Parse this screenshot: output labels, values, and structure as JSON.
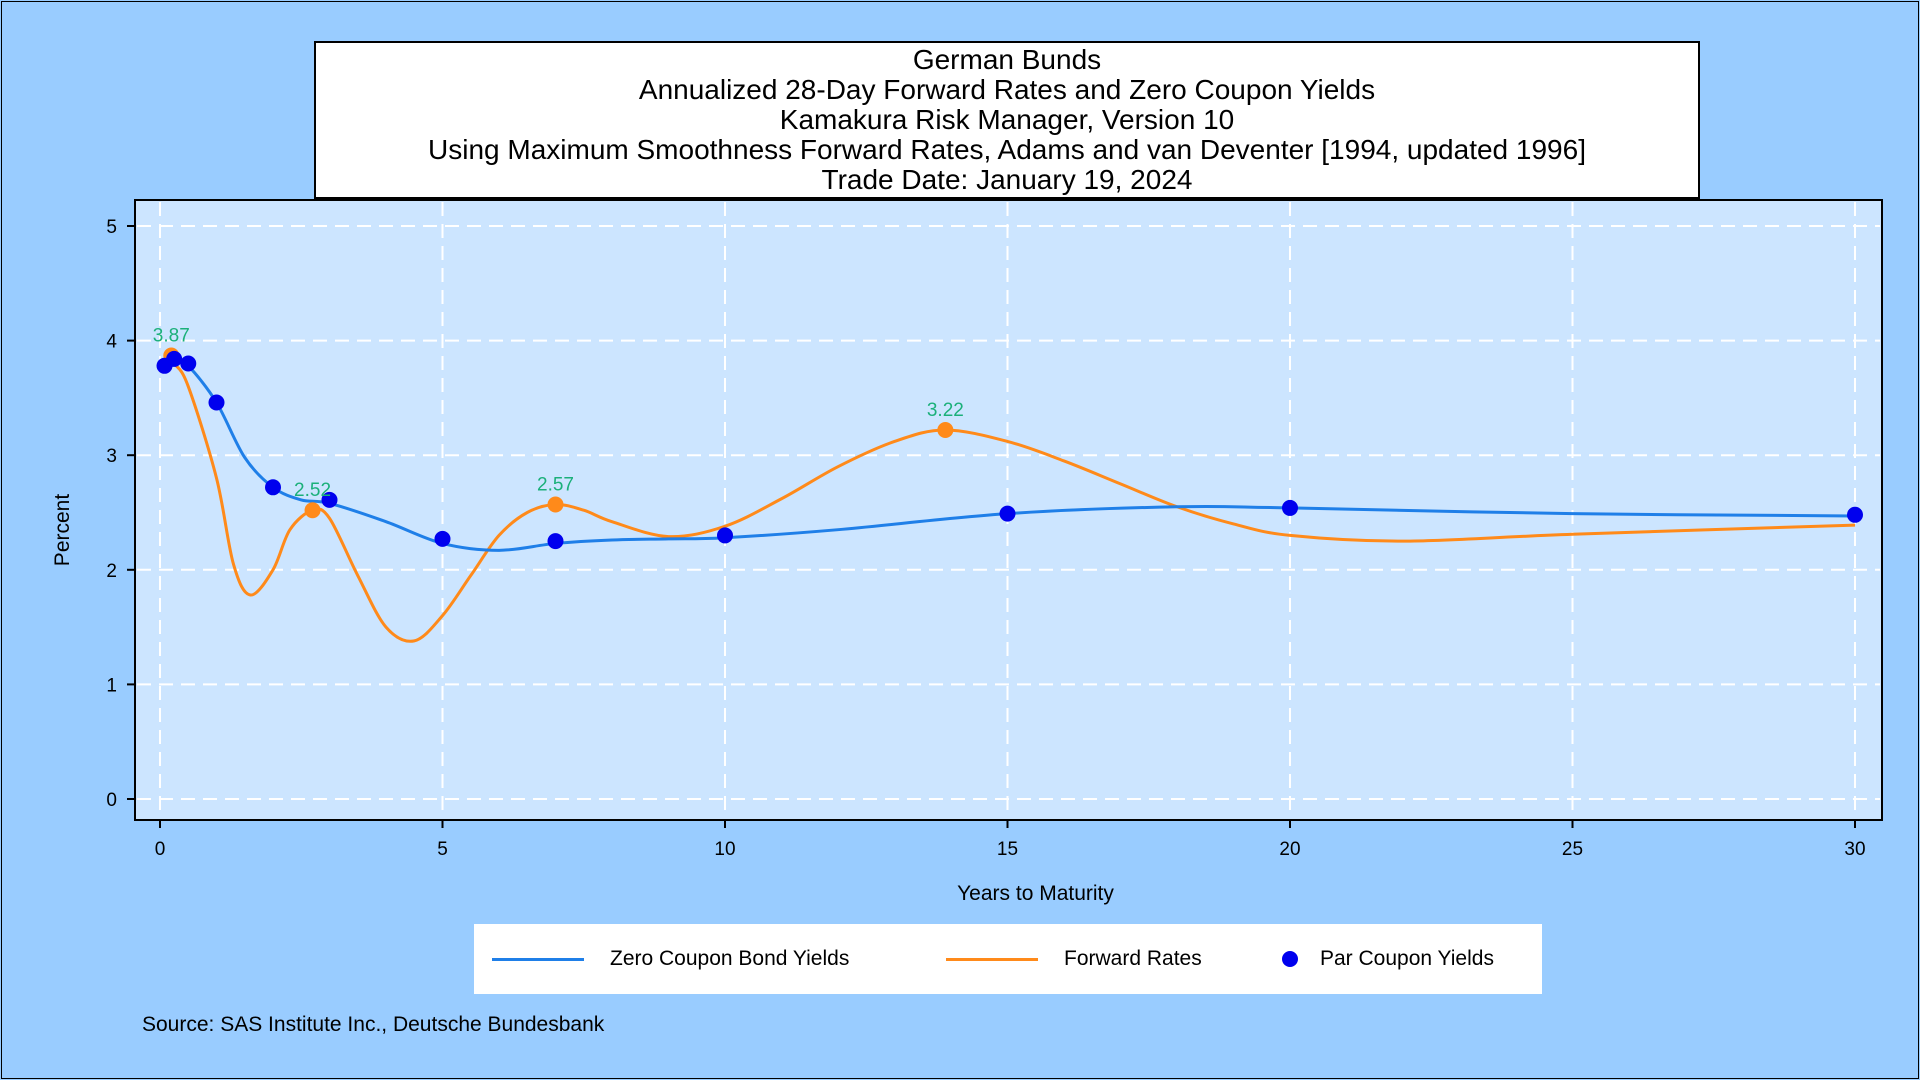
{
  "titles": [
    "German Bunds",
    "Annualized 28-Day Forward Rates and Zero Coupon Yields",
    "Kamakura Risk Manager, Version 10",
    "Using Maximum Smoothness Forward Rates, Adams and van Deventer [1994, updated 1996]",
    "Trade Date: January 19, 2024"
  ],
  "source": "Source: SAS Institute Inc., Deutsche Bundesbank",
  "legend": {
    "zero": "Zero Coupon Bond Yields",
    "forward": "Forward Rates",
    "par": "Par Coupon Yields"
  },
  "colors": {
    "zero": "#1f7fe8",
    "forward": "#ff8a1a",
    "par": "#0000ee",
    "label": "#1bb07a",
    "plot_bg": "#cce5ff",
    "page_bg": "#99ccff"
  },
  "chart_data": {
    "type": "line",
    "xlabel": "Years to Maturity",
    "ylabel": "Percent",
    "xlim": [
      0,
      30
    ],
    "ylim": [
      0,
      5
    ],
    "xticks": [
      0,
      5,
      10,
      15,
      20,
      25,
      30
    ],
    "yticks": [
      0,
      1,
      2,
      3,
      4,
      5
    ],
    "grid": true,
    "legend_position": "bottom",
    "series": [
      {
        "name": "Zero Coupon Bond Yields",
        "type": "line",
        "x": [
          0.08,
          0.25,
          0.5,
          1,
          1.5,
          2,
          2.5,
          3,
          4,
          5,
          6,
          7,
          8,
          9,
          10,
          12,
          15,
          18,
          20,
          25,
          30
        ],
        "y": [
          3.79,
          3.84,
          3.78,
          3.46,
          2.98,
          2.72,
          2.61,
          2.58,
          2.42,
          2.23,
          2.17,
          2.23,
          2.26,
          2.27,
          2.28,
          2.35,
          2.49,
          2.55,
          2.54,
          2.49,
          2.47
        ]
      },
      {
        "name": "Forward Rates",
        "type": "line",
        "x": [
          0.08,
          0.25,
          0.5,
          1,
          1.3,
          1.6,
          2,
          2.3,
          2.7,
          3,
          3.5,
          4,
          4.5,
          5,
          5.5,
          6,
          6.5,
          7,
          7.5,
          8,
          9,
          10,
          11,
          12,
          13,
          13.9,
          15,
          16,
          17,
          18,
          19,
          20,
          22,
          25,
          30
        ],
        "y": [
          3.87,
          3.8,
          3.6,
          2.8,
          2.05,
          1.78,
          2.0,
          2.35,
          2.52,
          2.45,
          1.95,
          1.5,
          1.38,
          1.6,
          1.95,
          2.3,
          2.5,
          2.57,
          2.52,
          2.42,
          2.29,
          2.38,
          2.62,
          2.9,
          3.12,
          3.22,
          3.12,
          2.95,
          2.75,
          2.55,
          2.4,
          2.3,
          2.25,
          2.31,
          2.39
        ]
      },
      {
        "name": "Par Coupon Yields",
        "type": "scatter",
        "x": [
          0.08,
          0.25,
          0.5,
          1,
          2,
          3,
          5,
          7,
          10,
          15,
          20,
          30
        ],
        "y": [
          3.78,
          3.84,
          3.8,
          3.46,
          2.72,
          2.61,
          2.27,
          2.25,
          2.3,
          2.49,
          2.54,
          2.48
        ]
      }
    ],
    "forward_markers": [
      {
        "x": 0.2,
        "y": 3.87,
        "label": "3.87"
      },
      {
        "x": 2.7,
        "y": 2.52,
        "label": "2.52"
      },
      {
        "x": 7.0,
        "y": 2.57,
        "label": "2.57"
      },
      {
        "x": 13.9,
        "y": 3.22,
        "label": "3.22"
      }
    ]
  }
}
